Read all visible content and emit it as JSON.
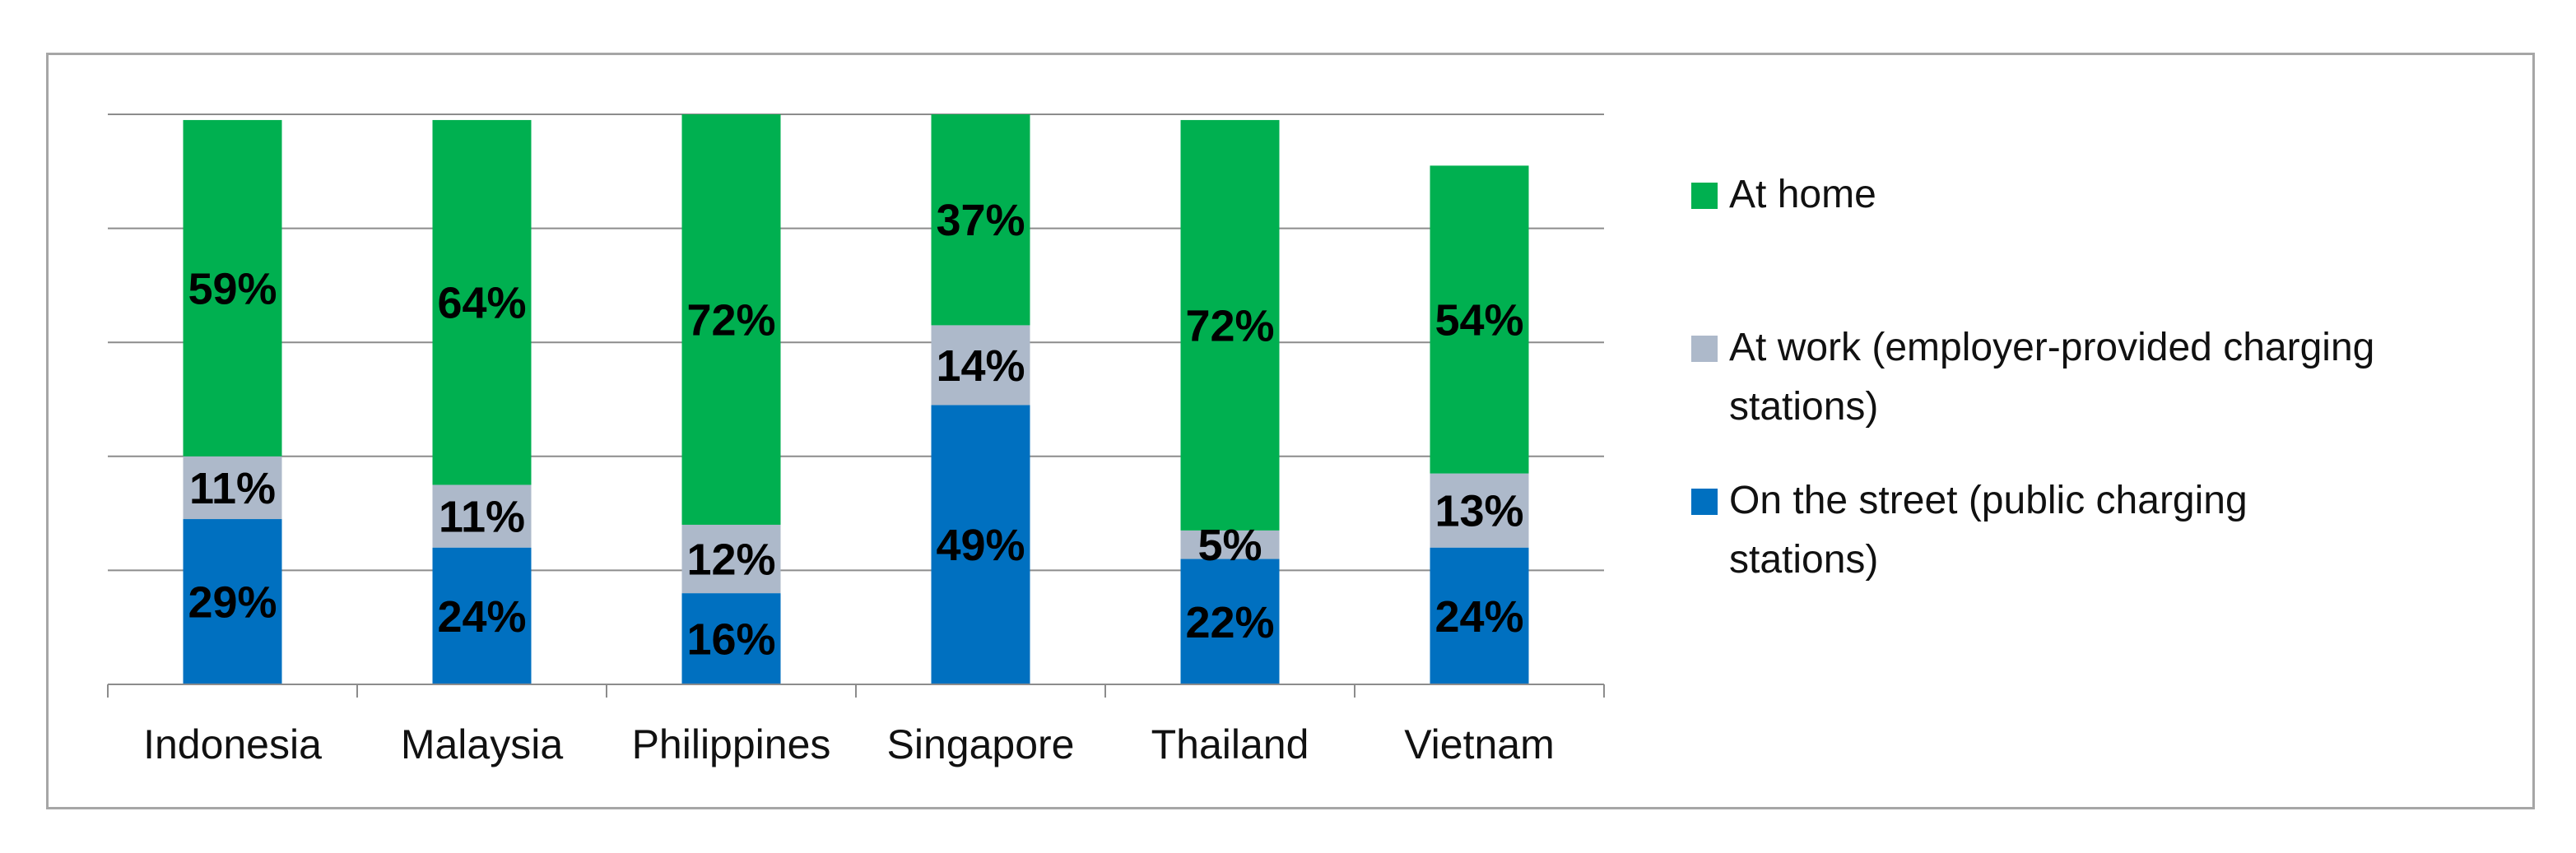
{
  "chart_data": {
    "type": "bar",
    "stacked": true,
    "percent_stacked": true,
    "categories": [
      "Indonesia",
      "Malaysia",
      "Philippines",
      "Singapore",
      "Thailand",
      "Vietnam"
    ],
    "series": [
      {
        "name": "On the street (public charging stations)",
        "values": [
          29,
          24,
          16,
          49,
          22,
          24
        ],
        "labels": [
          "29%",
          "24%",
          "16%",
          "49%",
          "22%",
          "24%"
        ],
        "color": "#0070c0"
      },
      {
        "name": "At work (employer-provided charging stations)",
        "values": [
          11,
          11,
          12,
          14,
          5,
          13
        ],
        "labels": [
          "11%",
          "11%",
          "12%",
          "14%",
          "5%",
          "13%"
        ],
        "color": "#adb9ca"
      },
      {
        "name": "At home",
        "values": [
          59,
          64,
          72,
          37,
          72,
          54
        ],
        "labels": [
          "59%",
          "64%",
          "72%",
          "37%",
          "72%",
          "54%"
        ],
        "color": "#00b050"
      }
    ],
    "legend_order": [
      "At home",
      "At work (employer-provided charging stations)",
      "On the street (public charging stations)"
    ],
    "legend_position": "right",
    "ylim": [
      0,
      100
    ],
    "grid": true,
    "y_axis_visible": false
  }
}
